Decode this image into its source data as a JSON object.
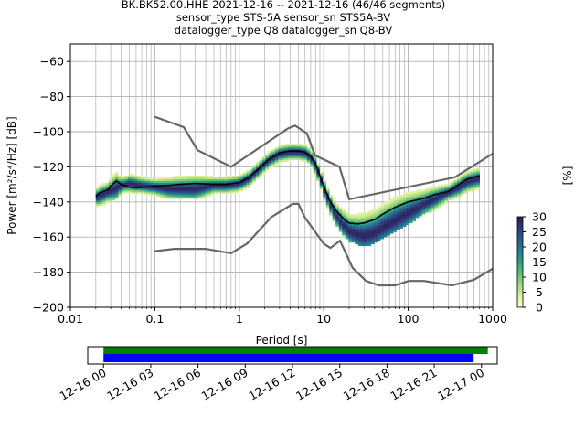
{
  "title_lines": [
    "BK.BK52.00.HHE   2021-12-16 -- 2021-12-16  (46/46 segments)",
    "sensor_type STS-5A sensor_sn STS5A-BV",
    "datalogger_type Q8 datalogger_sn Q8-BV"
  ],
  "chart_data": [
    {
      "type": "heatmap",
      "xlabel": "Period [s]",
      "ylabel": "Power [m²/s⁴/Hz] [dB]",
      "x_scale": "log",
      "xlim": [
        0.01,
        1000
      ],
      "ylim": [
        -200,
        -50
      ],
      "x_ticks": [
        {
          "value": 0.01,
          "label": "0.01"
        },
        {
          "value": 0.1,
          "label": "0.1"
        },
        {
          "value": 1,
          "label": "1"
        },
        {
          "value": 10,
          "label": "10"
        },
        {
          "value": 100,
          "label": "100"
        },
        {
          "value": 1000,
          "label": "1000"
        }
      ],
      "y_ticks": [
        {
          "value": -60,
          "label": "−60"
        },
        {
          "value": -80,
          "label": "−80"
        },
        {
          "value": -100,
          "label": "−100"
        },
        {
          "value": -120,
          "label": "−120"
        },
        {
          "value": -140,
          "label": "−140"
        },
        {
          "value": -160,
          "label": "−160"
        },
        {
          "value": -180,
          "label": "−180"
        },
        {
          "value": -200,
          "label": "−200"
        }
      ],
      "grid": true,
      "noise_models": {
        "high": {
          "x": [
            0.1,
            0.22,
            0.32,
            0.8,
            3.8,
            4.6,
            6.3,
            7.9,
            15.4,
            20,
            354.8,
            1000
          ],
          "y": [
            -91.5,
            -97.4,
            -110.5,
            -120,
            -98,
            -96.5,
            -101,
            -113.5,
            -120,
            -138.5,
            -126,
            -112.5
          ]
        },
        "low": {
          "x": [
            0.1,
            0.17,
            0.4,
            0.8,
            1.24,
            2.4,
            4.3,
            5,
            6,
            10,
            12,
            15.6,
            21.9,
            31.6,
            45,
            70,
            101,
            154,
            328,
            600,
            1000
          ],
          "y": [
            -168,
            -166.7,
            -166.7,
            -169.2,
            -163.7,
            -148.6,
            -141.1,
            -141.1,
            -149,
            -163.8,
            -166.2,
            -162.1,
            -177.5,
            -185,
            -187.5,
            -187.5,
            -185,
            -185,
            -187.5,
            -184.4,
            -178
          ]
        }
      },
      "mean_psd": {
        "x": [
          0.02,
          0.022,
          0.025,
          0.028,
          0.03,
          0.035,
          0.04,
          0.05,
          0.06,
          0.08,
          0.1,
          0.15,
          0.2,
          0.3,
          0.5,
          0.7,
          1,
          1.3,
          1.7,
          2.2,
          3,
          4,
          5,
          6,
          7,
          8,
          9,
          10,
          12,
          14,
          16,
          18,
          20,
          25,
          30,
          40,
          50,
          70,
          100,
          150,
          200,
          300,
          400,
          500,
          700
        ],
        "y": [
          -137,
          -135,
          -134,
          -133,
          -131,
          -128,
          -130,
          -131.5,
          -132,
          -131.5,
          -131,
          -130.5,
          -130,
          -129.5,
          -130,
          -130,
          -129,
          -126,
          -121,
          -116,
          -112,
          -111,
          -111,
          -111.5,
          -114,
          -118,
          -125,
          -131,
          -140,
          -145,
          -148,
          -150.5,
          -152,
          -152.5,
          -152,
          -150,
          -147,
          -143,
          -140,
          -138,
          -136,
          -134,
          -130,
          -127,
          -125
        ]
      },
      "histogram_mode_psd": {
        "x": [
          0.02,
          0.025,
          0.03,
          0.04,
          0.05,
          0.07,
          0.1,
          0.15,
          0.2,
          0.3,
          0.5,
          0.7,
          1,
          1.3,
          1.7,
          2.2,
          3,
          4,
          5,
          6,
          7,
          8,
          9,
          10,
          12,
          14,
          16,
          18,
          20,
          25,
          30,
          40,
          50,
          70,
          100,
          150,
          200,
          300,
          400,
          500,
          700
        ],
        "y": [
          -138,
          -136,
          -134,
          -131,
          -130,
          -131,
          -132,
          -133,
          -133,
          -133,
          -131,
          -131,
          -130,
          -127,
          -122,
          -117,
          -113,
          -112,
          -112,
          -112.5,
          -115,
          -120,
          -126,
          -133,
          -142,
          -148,
          -152,
          -155,
          -157,
          -159,
          -160,
          -158,
          -155,
          -151,
          -147,
          -142,
          -139,
          -135,
          -132,
          -129,
          -127
        ]
      },
      "colorbar": {
        "label": "[%]",
        "min": 0,
        "max": 30,
        "ticks": [
          {
            "value": 0,
            "label": "0"
          },
          {
            "value": 5,
            "label": "5"
          },
          {
            "value": 10,
            "label": "10"
          },
          {
            "value": 15,
            "label": "15"
          },
          {
            "value": 20,
            "label": "20"
          },
          {
            "value": 25,
            "label": "25"
          },
          {
            "value": 30,
            "label": "30"
          }
        ],
        "colors": [
          "#ffffe0",
          "#d7ef9a",
          "#9fd77f",
          "#5fbe6f",
          "#2ea086",
          "#23808f",
          "#2a5d8c",
          "#2f3b7a",
          "#2a1a4f"
        ]
      },
      "colors": {
        "high_low_model": "#666666",
        "mean": "#000000",
        "grid": "#b0b0b0"
      }
    },
    {
      "type": "bar",
      "description_none": "",
      "xlim_hours": [
        -1,
        25
      ],
      "x_ticks": [
        {
          "value": 0,
          "label": "12-16 00"
        },
        {
          "value": 3,
          "label": "12-16 03"
        },
        {
          "value": 6,
          "label": "12-16 06"
        },
        {
          "value": 9,
          "label": "12-16 09"
        },
        {
          "value": 12,
          "label": "12-16 12"
        },
        {
          "value": 15,
          "label": "12-16 15"
        },
        {
          "value": 18,
          "label": "12-16 18"
        },
        {
          "value": 21,
          "label": "12-16 21"
        },
        {
          "value": 24,
          "label": "12-17 00"
        }
      ],
      "coverage": [
        {
          "start": 0,
          "end": 24.4,
          "color": "#008000"
        },
        {
          "start": 0,
          "end": 23.5,
          "color": "#0000ff"
        }
      ]
    }
  ]
}
